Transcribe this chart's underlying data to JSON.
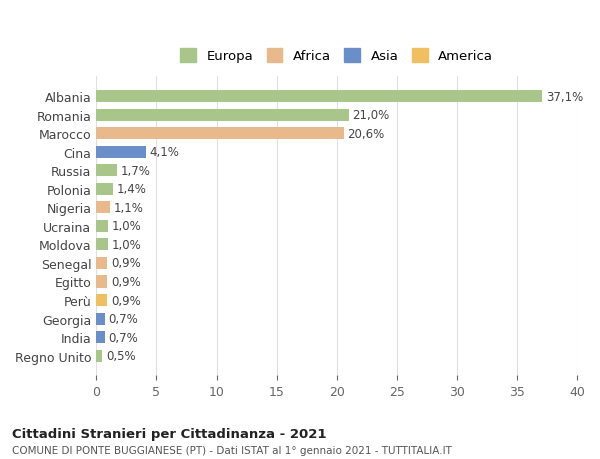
{
  "countries": [
    "Albania",
    "Romania",
    "Marocco",
    "Cina",
    "Russia",
    "Polonia",
    "Nigeria",
    "Ucraina",
    "Moldova",
    "Senegal",
    "Egitto",
    "Perù",
    "Georgia",
    "India",
    "Regno Unito"
  ],
  "values": [
    37.1,
    21.0,
    20.6,
    4.1,
    1.7,
    1.4,
    1.1,
    1.0,
    1.0,
    0.9,
    0.9,
    0.9,
    0.7,
    0.7,
    0.5
  ],
  "labels": [
    "37,1%",
    "21,0%",
    "20,6%",
    "4,1%",
    "1,7%",
    "1,4%",
    "1,1%",
    "1,0%",
    "1,0%",
    "0,9%",
    "0,9%",
    "0,9%",
    "0,7%",
    "0,7%",
    "0,5%"
  ],
  "continents": [
    "Europa",
    "Europa",
    "Africa",
    "Asia",
    "Europa",
    "Europa",
    "Africa",
    "Europa",
    "Europa",
    "Africa",
    "Africa",
    "America",
    "Asia",
    "Asia",
    "Europa"
  ],
  "continent_colors": {
    "Europa": "#a8c58a",
    "Africa": "#e8b98a",
    "Asia": "#6a8fc8",
    "America": "#f0c060"
  },
  "legend_order": [
    "Europa",
    "Africa",
    "Asia",
    "America"
  ],
  "title": "Cittadini Stranieri per Cittadinanza - 2021",
  "subtitle": "COMUNE DI PONTE BUGGIANESE (PT) - Dati ISTAT al 1° gennaio 2021 - TUTTITALIA.IT",
  "xlim": [
    0,
    40
  ],
  "xticks": [
    0,
    5,
    10,
    15,
    20,
    25,
    30,
    35,
    40
  ],
  "bg_color": "#ffffff",
  "grid_color": "#e0e0e0",
  "bar_height": 0.65
}
